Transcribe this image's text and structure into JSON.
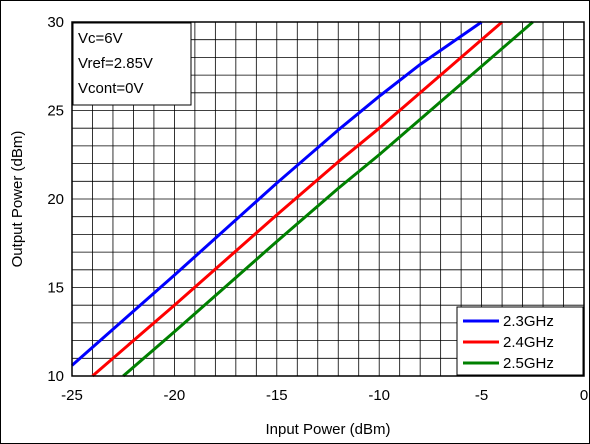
{
  "chart_data": {
    "type": "line",
    "xlabel": "Input Power (dBm)",
    "ylabel": "Output Power (dBm)",
    "xlim": [
      -25,
      0
    ],
    "ylim": [
      10,
      30
    ],
    "xticks": [
      -25,
      -20,
      -15,
      -10,
      -5,
      0
    ],
    "yticks": [
      10,
      15,
      20,
      25,
      30
    ],
    "grid": true,
    "legend_position": "bottom-right",
    "annotation": [
      "Vc=6V",
      "Vref=2.85V",
      "Vcont=0V"
    ],
    "series": [
      {
        "name": "2.3GHz",
        "color": "#0000ff",
        "x": [
          -25,
          -20,
          -15,
          -12,
          -10,
          -8,
          -5
        ],
        "y": [
          10.6,
          15.7,
          20.9,
          23.9,
          25.8,
          27.6,
          30.0
        ]
      },
      {
        "name": "2.4GHz",
        "color": "#ff0000",
        "x": [
          -24,
          -20,
          -15,
          -12,
          -10,
          -8,
          -4
        ],
        "y": [
          10.0,
          14.0,
          19.1,
          22.1,
          24.0,
          26.0,
          30.0
        ]
      },
      {
        "name": "2.5GHz",
        "color": "#008000",
        "x": [
          -22.5,
          -20,
          -15,
          -12,
          -10,
          -8,
          -2.5
        ],
        "y": [
          10.0,
          12.5,
          17.6,
          20.6,
          22.5,
          24.5,
          30.0
        ]
      }
    ]
  }
}
